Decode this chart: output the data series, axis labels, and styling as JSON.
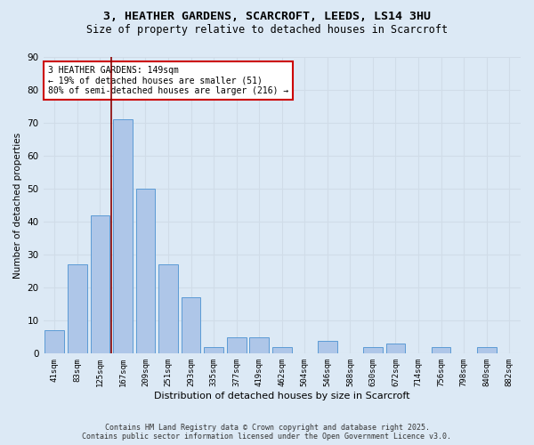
{
  "title1": "3, HEATHER GARDENS, SCARCROFT, LEEDS, LS14 3HU",
  "title2": "Size of property relative to detached houses in Scarcroft",
  "xlabel": "Distribution of detached houses by size in Scarcroft",
  "ylabel": "Number of detached properties",
  "categories": [
    "41sqm",
    "83sqm",
    "125sqm",
    "167sqm",
    "209sqm",
    "251sqm",
    "293sqm",
    "335sqm",
    "377sqm",
    "419sqm",
    "462sqm",
    "504sqm",
    "546sqm",
    "588sqm",
    "630sqm",
    "672sqm",
    "714sqm",
    "756sqm",
    "798sqm",
    "840sqm",
    "882sqm"
  ],
  "values": [
    7,
    27,
    42,
    71,
    50,
    27,
    17,
    2,
    5,
    5,
    2,
    0,
    4,
    0,
    2,
    3,
    0,
    2,
    0,
    2,
    0
  ],
  "bar_color": "#aec6e8",
  "bar_edge_color": "#5b9bd5",
  "grid_color": "#d0dce8",
  "bg_color": "#dce9f5",
  "vline_color": "#8b0000",
  "vline_x_index": 2.5,
  "annotation_text": "3 HEATHER GARDENS: 149sqm\n← 19% of detached houses are smaller (51)\n80% of semi-detached houses are larger (216) →",
  "annotation_box_color": "#ffffff",
  "annotation_box_edge": "#cc0000",
  "ylim": [
    0,
    90
  ],
  "yticks": [
    0,
    10,
    20,
    30,
    40,
    50,
    60,
    70,
    80,
    90
  ],
  "footer1": "Contains HM Land Registry data © Crown copyright and database right 2025.",
  "footer2": "Contains public sector information licensed under the Open Government Licence v3.0."
}
